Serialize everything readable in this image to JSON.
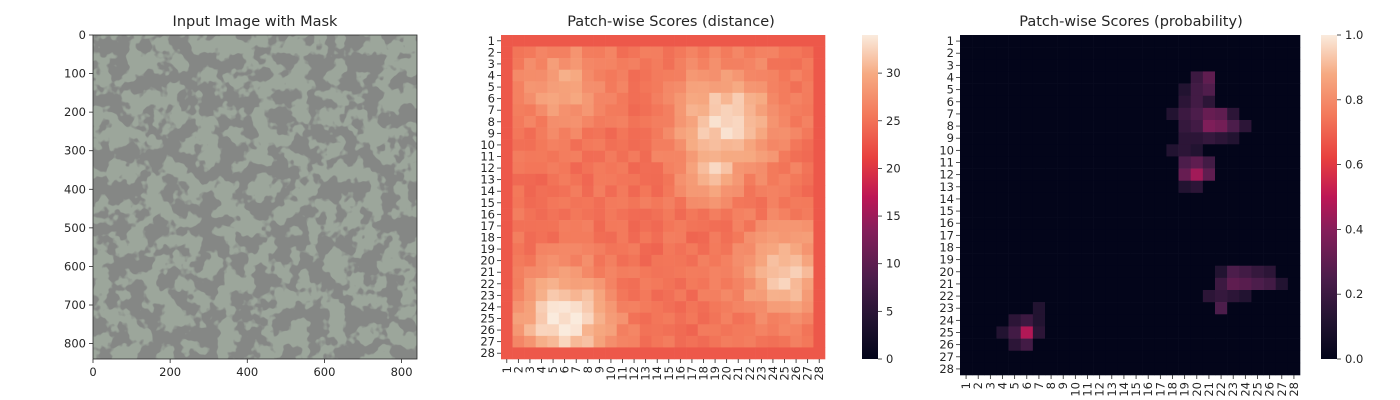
{
  "chart_data": [
    {
      "type": "image",
      "title": "Input Image with Mask",
      "x_ticks": [
        "0",
        "200",
        "400",
        "600",
        "800"
      ],
      "y_ticks": [
        "0",
        "100",
        "200",
        "300",
        "400",
        "500",
        "600",
        "700",
        "800"
      ],
      "xlim": [
        0,
        840
      ],
      "ylim": [
        840,
        0
      ],
      "image": {
        "texture": "light grey-green surface with dark grey mottled spots",
        "base_color": "#9ca69b",
        "spot_color": "#3b3d3b"
      }
    },
    {
      "type": "heatmap",
      "title": "Patch-wise Scores (distance)",
      "grid_size": 28,
      "x_labels": [
        "1",
        "2",
        "3",
        "4",
        "5",
        "6",
        "7",
        "8",
        "9",
        "10",
        "11",
        "12",
        "13",
        "14",
        "15",
        "16",
        "17",
        "18",
        "19",
        "20",
        "21",
        "22",
        "23",
        "24",
        "25",
        "26",
        "27",
        "28"
      ],
      "y_labels": [
        "1",
        "2",
        "3",
        "4",
        "5",
        "6",
        "7",
        "8",
        "9",
        "10",
        "11",
        "12",
        "13",
        "14",
        "15",
        "16",
        "17",
        "18",
        "19",
        "20",
        "21",
        "22",
        "23",
        "24",
        "25",
        "26",
        "27",
        "28"
      ],
      "colorbar": {
        "min": 0,
        "max": 34,
        "ticks": [
          "0",
          "5",
          "10",
          "15",
          "20",
          "25",
          "30"
        ],
        "colormap": "rocket"
      },
      "base_value": 25,
      "edge_value": 21,
      "hotspots": [
        {
          "row": 8,
          "col": 20,
          "peak": 33,
          "radius": 4.2
        },
        {
          "row": 12,
          "col": 19,
          "peak": 32,
          "radius": 2.6
        },
        {
          "row": 5,
          "col": 6,
          "peak": 30,
          "radius": 3.2
        },
        {
          "row": 21,
          "col": 25,
          "peak": 32,
          "radius": 3.6
        },
        {
          "row": 25,
          "col": 6,
          "peak": 34,
          "radius": 3.8
        }
      ]
    },
    {
      "type": "heatmap",
      "title": "Patch-wise Scores (probability)",
      "grid_size": 28,
      "x_labels": [
        "1",
        "2",
        "3",
        "4",
        "5",
        "6",
        "7",
        "8",
        "9",
        "10",
        "11",
        "12",
        "13",
        "14",
        "15",
        "16",
        "17",
        "18",
        "19",
        "20",
        "21",
        "22",
        "23",
        "24",
        "25",
        "26",
        "27",
        "28"
      ],
      "y_labels": [
        "1",
        "2",
        "3",
        "4",
        "5",
        "6",
        "7",
        "8",
        "9",
        "10",
        "11",
        "12",
        "13",
        "14",
        "15",
        "16",
        "17",
        "18",
        "19",
        "20",
        "21",
        "22",
        "23",
        "24",
        "25",
        "26",
        "27",
        "28"
      ],
      "colorbar": {
        "min": 0.0,
        "max": 1.0,
        "ticks": [
          "0.0",
          "0.2",
          "0.4",
          "0.6",
          "0.8",
          "1.0"
        ],
        "colormap": "rocket"
      },
      "base_value": 0.0,
      "cells": [
        {
          "row": 4,
          "col": 20,
          "value": 0.2
        },
        {
          "row": 4,
          "col": 21,
          "value": 0.3
        },
        {
          "row": 5,
          "col": 19,
          "value": 0.12
        },
        {
          "row": 5,
          "col": 20,
          "value": 0.22
        },
        {
          "row": 5,
          "col": 21,
          "value": 0.26
        },
        {
          "row": 6,
          "col": 19,
          "value": 0.15
        },
        {
          "row": 6,
          "col": 20,
          "value": 0.22
        },
        {
          "row": 6,
          "col": 21,
          "value": 0.15
        },
        {
          "row": 7,
          "col": 18,
          "value": 0.12
        },
        {
          "row": 7,
          "col": 19,
          "value": 0.2
        },
        {
          "row": 7,
          "col": 20,
          "value": 0.25
        },
        {
          "row": 7,
          "col": 21,
          "value": 0.32
        },
        {
          "row": 7,
          "col": 22,
          "value": 0.3
        },
        {
          "row": 7,
          "col": 23,
          "value": 0.15
        },
        {
          "row": 8,
          "col": 19,
          "value": 0.18
        },
        {
          "row": 8,
          "col": 20,
          "value": 0.22
        },
        {
          "row": 8,
          "col": 21,
          "value": 0.38
        },
        {
          "row": 8,
          "col": 22,
          "value": 0.35
        },
        {
          "row": 8,
          "col": 23,
          "value": 0.25
        },
        {
          "row": 8,
          "col": 24,
          "value": 0.15
        },
        {
          "row": 9,
          "col": 19,
          "value": 0.15
        },
        {
          "row": 9,
          "col": 20,
          "value": 0.15
        },
        {
          "row": 9,
          "col": 21,
          "value": 0.18
        },
        {
          "row": 9,
          "col": 22,
          "value": 0.15
        },
        {
          "row": 9,
          "col": 23,
          "value": 0.12
        },
        {
          "row": 10,
          "col": 18,
          "value": 0.12
        },
        {
          "row": 10,
          "col": 19,
          "value": 0.15
        },
        {
          "row": 10,
          "col": 20,
          "value": 0.12
        },
        {
          "row": 11,
          "col": 19,
          "value": 0.25
        },
        {
          "row": 11,
          "col": 20,
          "value": 0.3
        },
        {
          "row": 11,
          "col": 21,
          "value": 0.22
        },
        {
          "row": 12,
          "col": 19,
          "value": 0.32
        },
        {
          "row": 12,
          "col": 20,
          "value": 0.45
        },
        {
          "row": 12,
          "col": 21,
          "value": 0.3
        },
        {
          "row": 13,
          "col": 19,
          "value": 0.12
        },
        {
          "row": 13,
          "col": 20,
          "value": 0.15
        },
        {
          "row": 20,
          "col": 22,
          "value": 0.12
        },
        {
          "row": 20,
          "col": 23,
          "value": 0.25
        },
        {
          "row": 20,
          "col": 24,
          "value": 0.22
        },
        {
          "row": 20,
          "col": 25,
          "value": 0.18
        },
        {
          "row": 20,
          "col": 26,
          "value": 0.15
        },
        {
          "row": 21,
          "col": 22,
          "value": 0.2
        },
        {
          "row": 21,
          "col": 23,
          "value": 0.3
        },
        {
          "row": 21,
          "col": 24,
          "value": 0.28
        },
        {
          "row": 21,
          "col": 25,
          "value": 0.25
        },
        {
          "row": 21,
          "col": 26,
          "value": 0.22
        },
        {
          "row": 21,
          "col": 27,
          "value": 0.12
        },
        {
          "row": 22,
          "col": 21,
          "value": 0.15
        },
        {
          "row": 22,
          "col": 22,
          "value": 0.18
        },
        {
          "row": 22,
          "col": 23,
          "value": 0.15
        },
        {
          "row": 22,
          "col": 24,
          "value": 0.12
        },
        {
          "row": 23,
          "col": 22,
          "value": 0.25
        },
        {
          "row": 23,
          "col": 7,
          "value": 0.12
        },
        {
          "row": 24,
          "col": 5,
          "value": 0.15
        },
        {
          "row": 24,
          "col": 6,
          "value": 0.2
        },
        {
          "row": 24,
          "col": 7,
          "value": 0.12
        },
        {
          "row": 25,
          "col": 4,
          "value": 0.12
        },
        {
          "row": 25,
          "col": 5,
          "value": 0.22
        },
        {
          "row": 25,
          "col": 6,
          "value": 0.48
        },
        {
          "row": 25,
          "col": 7,
          "value": 0.15
        },
        {
          "row": 26,
          "col": 5,
          "value": 0.15
        },
        {
          "row": 26,
          "col": 6,
          "value": 0.22
        }
      ]
    }
  ]
}
